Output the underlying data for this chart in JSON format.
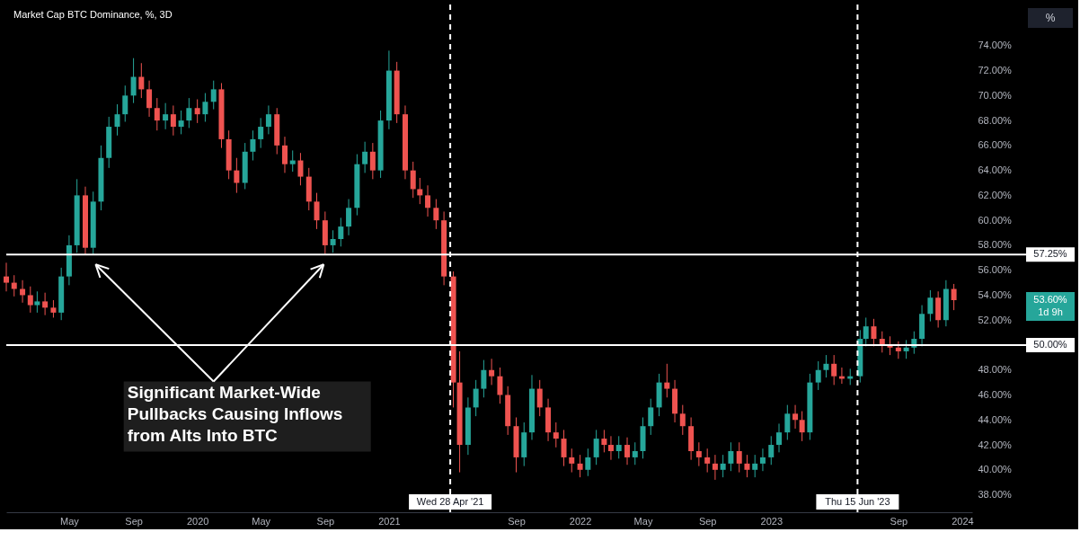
{
  "chart_data": {
    "type": "candlestick",
    "title": "Market Cap BTC Dominance, %, 3D",
    "x": [
      "2019-01-01",
      "2019-01-16",
      "2019-02-01",
      "2019-02-16",
      "2019-03-01",
      "2019-03-16",
      "2019-04-01",
      "2019-04-16",
      "2019-05-01",
      "2019-05-16",
      "2019-06-01",
      "2019-06-16",
      "2019-07-01",
      "2019-07-16",
      "2019-08-01",
      "2019-08-16",
      "2019-09-01",
      "2019-09-16",
      "2019-10-01",
      "2019-10-16",
      "2019-11-01",
      "2019-11-16",
      "2019-12-01",
      "2019-12-16",
      "2020-01-01",
      "2020-01-16",
      "2020-02-01",
      "2020-02-16",
      "2020-03-01",
      "2020-03-16",
      "2020-04-01",
      "2020-04-16",
      "2020-05-01",
      "2020-05-16",
      "2020-06-01",
      "2020-06-16",
      "2020-07-01",
      "2020-07-16",
      "2020-08-01",
      "2020-08-16",
      "2020-09-01",
      "2020-09-16",
      "2020-10-01",
      "2020-10-16",
      "2020-11-01",
      "2020-11-16",
      "2020-12-01",
      "2020-12-16",
      "2021-01-01",
      "2021-01-16",
      "2021-02-01",
      "2021-02-16",
      "2021-03-01",
      "2021-03-16",
      "2021-04-01",
      "2021-04-16",
      "2021-05-04",
      "2021-05-16",
      "2021-06-01",
      "2021-06-16",
      "2021-07-01",
      "2021-07-16",
      "2021-08-01",
      "2021-08-16",
      "2021-09-01",
      "2021-09-16",
      "2021-10-01",
      "2021-10-16",
      "2021-11-01",
      "2021-11-16",
      "2021-12-01",
      "2021-12-16",
      "2022-01-01",
      "2022-01-16",
      "2022-02-01",
      "2022-02-16",
      "2022-03-01",
      "2022-03-16",
      "2022-04-01",
      "2022-04-16",
      "2022-05-01",
      "2022-05-16",
      "2022-06-01",
      "2022-06-16",
      "2022-07-01",
      "2022-07-16",
      "2022-08-01",
      "2022-08-16",
      "2022-09-01",
      "2022-09-16",
      "2022-10-01",
      "2022-10-16",
      "2022-11-01",
      "2022-11-16",
      "2022-12-01",
      "2022-12-16",
      "2023-01-01",
      "2023-01-16",
      "2023-02-01",
      "2023-02-16",
      "2023-03-01",
      "2023-03-16",
      "2023-04-01",
      "2023-04-16",
      "2023-05-01",
      "2023-05-16",
      "2023-06-01",
      "2023-06-20",
      "2023-07-01",
      "2023-07-16",
      "2023-08-01",
      "2023-08-16",
      "2023-09-01",
      "2023-09-16",
      "2023-10-01",
      "2023-10-16",
      "2023-11-01",
      "2023-11-16",
      "2023-12-01",
      "2023-12-16"
    ],
    "ohlc": [
      [
        55.5,
        56.6,
        54.3,
        55.0
      ],
      [
        55.0,
        55.6,
        53.9,
        54.5
      ],
      [
        54.5,
        55.2,
        53.4,
        54.0
      ],
      [
        54.0,
        54.7,
        52.6,
        53.2
      ],
      [
        53.2,
        54.3,
        52.6,
        53.5
      ],
      [
        53.5,
        54.2,
        52.4,
        53.0
      ],
      [
        53.0,
        53.6,
        52.2,
        52.6
      ],
      [
        52.6,
        56.2,
        52.0,
        55.5
      ],
      [
        55.5,
        58.8,
        54.8,
        58.0
      ],
      [
        58.0,
        63.3,
        57.4,
        62.0
      ],
      [
        62.0,
        62.7,
        57.2,
        57.8
      ],
      [
        57.8,
        62.3,
        57.2,
        61.5
      ],
      [
        61.5,
        66.0,
        60.8,
        65.0
      ],
      [
        65.0,
        68.3,
        64.2,
        67.5
      ],
      [
        67.5,
        69.3,
        66.8,
        68.5
      ],
      [
        68.5,
        70.8,
        67.9,
        70.0
      ],
      [
        70.0,
        73.0,
        69.4,
        71.5
      ],
      [
        71.5,
        72.6,
        69.8,
        70.5
      ],
      [
        70.5,
        71.2,
        68.3,
        69.0
      ],
      [
        69.0,
        69.8,
        67.2,
        68.0
      ],
      [
        68.0,
        69.4,
        67.3,
        68.5
      ],
      [
        68.5,
        69.2,
        66.8,
        67.5
      ],
      [
        67.5,
        68.8,
        66.9,
        68.0
      ],
      [
        68.0,
        69.8,
        67.4,
        69.0
      ],
      [
        69.0,
        69.7,
        67.8,
        68.5
      ],
      [
        68.5,
        70.2,
        67.9,
        69.5
      ],
      [
        69.5,
        71.2,
        68.9,
        70.5
      ],
      [
        70.5,
        71.0,
        65.8,
        66.5
      ],
      [
        66.5,
        67.2,
        63.3,
        64.0
      ],
      [
        64.0,
        65.0,
        62.2,
        63.0
      ],
      [
        63.0,
        66.2,
        62.5,
        65.5
      ],
      [
        65.5,
        67.2,
        64.8,
        66.5
      ],
      [
        66.5,
        68.2,
        65.8,
        67.5
      ],
      [
        67.5,
        69.2,
        66.9,
        68.5
      ],
      [
        68.5,
        69.0,
        65.3,
        66.0
      ],
      [
        66.0,
        66.7,
        63.8,
        64.5
      ],
      [
        64.5,
        65.6,
        63.9,
        64.8
      ],
      [
        64.8,
        65.4,
        62.8,
        63.5
      ],
      [
        63.5,
        64.2,
        60.8,
        61.5
      ],
      [
        61.5,
        62.2,
        59.3,
        60.0
      ],
      [
        60.0,
        60.7,
        57.3,
        58.0
      ],
      [
        58.0,
        59.2,
        57.4,
        58.5
      ],
      [
        58.5,
        60.2,
        57.9,
        59.5
      ],
      [
        59.5,
        61.7,
        58.8,
        61.0
      ],
      [
        61.0,
        65.3,
        60.4,
        64.5
      ],
      [
        64.5,
        66.3,
        63.8,
        65.5
      ],
      [
        65.5,
        66.2,
        63.3,
        64.0
      ],
      [
        64.0,
        68.8,
        63.4,
        68.0
      ],
      [
        68.0,
        73.6,
        67.3,
        72.0
      ],
      [
        72.0,
        72.7,
        67.8,
        68.5
      ],
      [
        68.5,
        69.2,
        63.3,
        64.0
      ],
      [
        64.0,
        64.7,
        61.8,
        62.5
      ],
      [
        62.5,
        63.4,
        61.3,
        62.0
      ],
      [
        62.0,
        62.8,
        60.3,
        61.0
      ],
      [
        61.0,
        61.7,
        59.3,
        60.0
      ],
      [
        60.0,
        60.7,
        54.8,
        55.5
      ],
      [
        55.5,
        55.9,
        45.0,
        47.0
      ],
      [
        47.0,
        49.5,
        39.8,
        42.0
      ],
      [
        42.0,
        45.8,
        41.2,
        45.0
      ],
      [
        45.0,
        47.2,
        44.3,
        46.5
      ],
      [
        46.5,
        48.8,
        45.8,
        48.0
      ],
      [
        48.0,
        48.9,
        46.8,
        47.5
      ],
      [
        47.5,
        48.2,
        45.3,
        46.0
      ],
      [
        46.0,
        46.7,
        42.8,
        43.5
      ],
      [
        43.5,
        44.2,
        39.8,
        41.0
      ],
      [
        41.0,
        43.8,
        40.3,
        43.0
      ],
      [
        43.0,
        47.6,
        42.4,
        46.5
      ],
      [
        46.5,
        47.2,
        44.3,
        45.0
      ],
      [
        45.0,
        45.7,
        42.3,
        43.0
      ],
      [
        43.0,
        43.8,
        41.8,
        42.5
      ],
      [
        42.5,
        43.2,
        40.3,
        41.0
      ],
      [
        41.0,
        41.7,
        39.8,
        40.5
      ],
      [
        40.5,
        41.2,
        39.4,
        40.0
      ],
      [
        40.0,
        41.7,
        39.5,
        41.0
      ],
      [
        41.0,
        43.2,
        40.4,
        42.5
      ],
      [
        42.5,
        43.2,
        41.4,
        42.0
      ],
      [
        42.0,
        42.7,
        40.8,
        41.5
      ],
      [
        41.5,
        42.7,
        40.9,
        42.0
      ],
      [
        42.0,
        42.6,
        40.4,
        41.0
      ],
      [
        41.0,
        42.2,
        40.4,
        41.5
      ],
      [
        41.5,
        44.2,
        40.9,
        43.5
      ],
      [
        43.5,
        45.7,
        42.8,
        45.0
      ],
      [
        45.0,
        47.7,
        44.3,
        47.0
      ],
      [
        47.0,
        48.5,
        45.8,
        46.5
      ],
      [
        46.5,
        47.2,
        43.8,
        44.5
      ],
      [
        44.5,
        45.2,
        42.8,
        43.5
      ],
      [
        43.5,
        44.2,
        40.8,
        41.5
      ],
      [
        41.5,
        42.2,
        40.3,
        41.0
      ],
      [
        41.0,
        41.7,
        39.8,
        40.5
      ],
      [
        40.5,
        41.2,
        39.2,
        40.0
      ],
      [
        40.0,
        41.2,
        39.4,
        40.5
      ],
      [
        40.5,
        42.2,
        39.9,
        41.5
      ],
      [
        41.5,
        42.2,
        39.8,
        40.5
      ],
      [
        40.5,
        41.2,
        39.4,
        40.0
      ],
      [
        40.0,
        41.2,
        39.4,
        40.5
      ],
      [
        40.5,
        41.7,
        39.9,
        41.0
      ],
      [
        41.0,
        42.7,
        40.4,
        42.0
      ],
      [
        42.0,
        43.7,
        41.4,
        43.0
      ],
      [
        43.0,
        45.2,
        42.4,
        44.5
      ],
      [
        44.5,
        45.2,
        43.3,
        44.0
      ],
      [
        44.0,
        44.7,
        42.3,
        43.0
      ],
      [
        43.0,
        47.7,
        42.4,
        47.0
      ],
      [
        47.0,
        48.7,
        46.4,
        48.0
      ],
      [
        48.0,
        49.2,
        47.4,
        48.5
      ],
      [
        48.5,
        49.2,
        46.8,
        47.5
      ],
      [
        47.5,
        48.2,
        46.9,
        47.3
      ],
      [
        47.3,
        48.1,
        46.8,
        47.5
      ],
      [
        47.5,
        51.2,
        47.0,
        50.5
      ],
      [
        50.5,
        52.2,
        49.9,
        51.5
      ],
      [
        51.5,
        52.1,
        49.9,
        50.5
      ],
      [
        50.5,
        51.1,
        49.4,
        50.0
      ],
      [
        50.0,
        50.7,
        49.2,
        49.8
      ],
      [
        49.8,
        50.3,
        48.9,
        49.5
      ],
      [
        49.5,
        50.4,
        48.9,
        49.8
      ],
      [
        49.8,
        51.1,
        49.3,
        50.5
      ],
      [
        50.5,
        53.2,
        49.9,
        52.5
      ],
      [
        52.5,
        54.4,
        51.9,
        53.8
      ],
      [
        53.8,
        54.3,
        51.4,
        52.0
      ],
      [
        52.0,
        55.2,
        51.5,
        54.5
      ],
      [
        54.5,
        54.9,
        52.8,
        53.6
      ]
    ],
    "colors": [
      "#ef5350",
      "#ef5350",
      "#ef5350",
      "#ef5350",
      "#26a69a",
      "#ef5350",
      "#ef5350",
      "#26a69a",
      "#26a69a",
      "#26a69a",
      "#ef5350",
      "#26a69a",
      "#26a69a",
      "#26a69a",
      "#26a69a",
      "#26a69a",
      "#26a69a",
      "#ef5350",
      "#ef5350",
      "#ef5350",
      "#26a69a",
      "#ef5350",
      "#26a69a",
      "#26a69a",
      "#ef5350",
      "#26a69a",
      "#26a69a",
      "#ef5350",
      "#ef5350",
      "#ef5350",
      "#26a69a",
      "#26a69a",
      "#26a69a",
      "#26a69a",
      "#ef5350",
      "#ef5350",
      "#26a69a",
      "#ef5350",
      "#ef5350",
      "#ef5350",
      "#ef5350",
      "#26a69a",
      "#26a69a",
      "#26a69a",
      "#26a69a",
      "#26a69a",
      "#ef5350",
      "#26a69a",
      "#26a69a",
      "#ef5350",
      "#ef5350",
      "#ef5350",
      "#ef5350",
      "#ef5350",
      "#ef5350",
      "#ef5350",
      "#ef5350",
      "#ef5350",
      "#26a69a",
      "#26a69a",
      "#26a69a",
      "#ef5350",
      "#ef5350",
      "#ef5350",
      "#ef5350",
      "#26a69a",
      "#26a69a",
      "#ef5350",
      "#ef5350",
      "#ef5350",
      "#ef5350",
      "#ef5350",
      "#ef5350",
      "#26a69a",
      "#26a69a",
      "#ef5350",
      "#ef5350",
      "#26a69a",
      "#ef5350",
      "#26a69a",
      "#26a69a",
      "#26a69a",
      "#26a69a",
      "#ef5350",
      "#ef5350",
      "#ef5350",
      "#ef5350",
      "#ef5350",
      "#ef5350",
      "#ef5350",
      "#26a69a",
      "#26a69a",
      "#ef5350",
      "#ef5350",
      "#26a69a",
      "#26a69a",
      "#26a69a",
      "#26a69a",
      "#26a69a",
      "#ef5350",
      "#ef5350",
      "#26a69a",
      "#26a69a",
      "#26a69a",
      "#ef5350",
      "#ef5350",
      "#26a69a",
      "#26a69a",
      "#26a69a",
      "#ef5350",
      "#ef5350",
      "#ef5350",
      "#ef5350",
      "#26a69a",
      "#26a69a",
      "#26a69a",
      "#26a69a",
      "#ef5350",
      "#26a69a",
      "#ef5350"
    ],
    "xlim": [
      "2019-01-01",
      "2024-01-20"
    ],
    "xticks": [
      {
        "value": "2019-05-01",
        "label": "May"
      },
      {
        "value": "2019-09-01",
        "label": "Sep"
      },
      {
        "value": "2020-01-01",
        "label": "2020"
      },
      {
        "value": "2020-05-01",
        "label": "May"
      },
      {
        "value": "2020-09-01",
        "label": "Sep"
      },
      {
        "value": "2021-01-01",
        "label": "2021"
      },
      {
        "value": "2021-09-01",
        "label": "Sep"
      },
      {
        "value": "2022-01-01",
        "label": "2022"
      },
      {
        "value": "2022-05-01",
        "label": "May"
      },
      {
        "value": "2022-09-01",
        "label": "Sep"
      },
      {
        "value": "2023-01-01",
        "label": "2023"
      },
      {
        "value": "2023-09-01",
        "label": "Sep"
      },
      {
        "value": "2024-01-01",
        "label": "2024"
      }
    ],
    "ylim": [
      36.6,
      77.3
    ],
    "yticks": [
      {
        "value": 38,
        "label": "38.00%"
      },
      {
        "value": 40,
        "label": "40.00%"
      },
      {
        "value": 42,
        "label": "42.00%"
      },
      {
        "value": 44,
        "label": "44.00%"
      },
      {
        "value": 46,
        "label": "46.00%"
      },
      {
        "value": 48,
        "label": "48.00%"
      },
      {
        "value": 52,
        "label": "52.00%"
      },
      {
        "value": 54,
        "label": "54.00%"
      },
      {
        "value": 56,
        "label": "56.00%"
      },
      {
        "value": 58,
        "label": "58.00%"
      },
      {
        "value": 60,
        "label": "60.00%"
      },
      {
        "value": 62,
        "label": "62.00%"
      },
      {
        "value": 64,
        "label": "64.00%"
      },
      {
        "value": 66,
        "label": "66.00%"
      },
      {
        "value": 68,
        "label": "68.00%"
      },
      {
        "value": 70,
        "label": "70.00%"
      },
      {
        "value": 72,
        "label": "72.00%"
      },
      {
        "value": 74,
        "label": "74.00%"
      }
    ],
    "ref_lines": [
      {
        "axis": "y",
        "value": 57.25,
        "label": "57.25%",
        "color": "#ffffff",
        "line_style": "solid"
      },
      {
        "axis": "y",
        "value": 50,
        "label": "50.00%",
        "color": "#ffffff",
        "line_style": "solid"
      },
      {
        "axis": "x",
        "value": "2021-04-28",
        "label": "Wed 28 Apr '21",
        "color": "#ffffff",
        "line_style": "dashed"
      },
      {
        "axis": "x",
        "value": "2023-06-15",
        "label": "Thu 15 Jun '23",
        "color": "#ffffff",
        "line_style": "dashed"
      }
    ],
    "annotations": [
      "Significant Market-Wide Pullbacks Causing Inflows from Alts Into BTC",
      "%",
      "53.60%",
      "1d 9h"
    ]
  }
}
